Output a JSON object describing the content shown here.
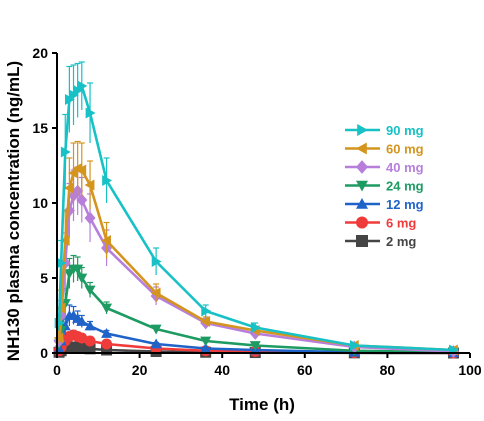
{
  "chart_data": {
    "type": "line",
    "xlabel": "Time (h)",
    "ylabel": "NH130 plasma concentration (ng/mL)",
    "xlim": [
      0,
      100
    ],
    "ylim": [
      0,
      20
    ],
    "xticks": [
      "0",
      "20",
      "40",
      "60",
      "80",
      "100"
    ],
    "yticks": [
      "0",
      "5",
      "10",
      "15",
      "20"
    ],
    "grid": false,
    "legend_position": "right",
    "series": [
      {
        "name": "90 mg",
        "color": "#17c1c6",
        "marker": "triangle-right",
        "x": [
          0.5,
          1,
          2,
          3,
          4,
          5,
          6,
          8,
          12,
          24,
          36,
          48,
          72,
          96
        ],
        "y": [
          2.0,
          6.0,
          13.4,
          16.9,
          17.2,
          17.5,
          17.8,
          16.0,
          11.5,
          6.1,
          2.8,
          1.7,
          0.5,
          0.2
        ],
        "err": [
          0.5,
          1.5,
          2.5,
          2.2,
          2.0,
          1.8,
          1.6,
          2.0,
          1.5,
          0.9,
          0.4,
          0.3,
          0.1,
          0.1
        ]
      },
      {
        "name": "60 mg",
        "color": "#d4951f",
        "marker": "triangle-left",
        "x": [
          0.5,
          1,
          2,
          3,
          4,
          5,
          6,
          8,
          12,
          24,
          36,
          48,
          72,
          96
        ],
        "y": [
          1.0,
          3.0,
          7.5,
          11.0,
          12.0,
          12.3,
          12.2,
          11.2,
          7.5,
          4.0,
          2.1,
          1.5,
          0.5,
          0.2
        ],
        "err": [
          0.4,
          1.2,
          2.0,
          2.0,
          2.0,
          1.8,
          1.8,
          1.6,
          1.2,
          0.6,
          0.3,
          0.2,
          0.1,
          0.1
        ]
      },
      {
        "name": "40 mg",
        "color": "#b77fdb",
        "marker": "diamond",
        "x": [
          0.5,
          1,
          2,
          3,
          4,
          5,
          6,
          8,
          12,
          24,
          36,
          48,
          72,
          96
        ],
        "y": [
          0.8,
          2.5,
          6.0,
          9.5,
          10.5,
          10.8,
          10.2,
          9.0,
          7.0,
          3.8,
          2.0,
          1.3,
          0.4,
          0.1
        ],
        "err": [
          0.3,
          1.0,
          2.0,
          1.8,
          1.7,
          1.6,
          1.5,
          1.6,
          1.2,
          0.6,
          0.3,
          0.2,
          0.1,
          0.1
        ]
      },
      {
        "name": "24 mg",
        "color": "#1e9b62",
        "marker": "triangle-down",
        "x": [
          0.5,
          1,
          2,
          3,
          4,
          5,
          6,
          8,
          12,
          24,
          36,
          48,
          72,
          96
        ],
        "y": [
          0.6,
          1.5,
          3.3,
          5.3,
          5.6,
          5.6,
          5.0,
          4.2,
          3.0,
          1.6,
          0.8,
          0.5,
          0.15,
          0.05
        ],
        "err": [
          0.2,
          0.6,
          1.0,
          1.0,
          0.9,
          0.8,
          0.7,
          0.5,
          0.4,
          0.2,
          0.1,
          0.1,
          0.05,
          0.03
        ]
      },
      {
        "name": "12 mg",
        "color": "#1f63c9",
        "marker": "triangle-up",
        "x": [
          0.5,
          1,
          2,
          3,
          4,
          5,
          6,
          8,
          12,
          24,
          36,
          48,
          72,
          96
        ],
        "y": [
          0.3,
          0.8,
          1.8,
          2.5,
          2.5,
          2.3,
          2.1,
          1.8,
          1.3,
          0.6,
          0.3,
          0.2,
          0.05,
          0.02
        ],
        "err": [
          0.1,
          0.4,
          0.6,
          0.7,
          0.6,
          0.5,
          0.4,
          0.3,
          0.2,
          0.1,
          0.05,
          0.05,
          0.02,
          0.01
        ]
      },
      {
        "name": "6 mg",
        "color": "#f03b3b",
        "marker": "circle",
        "x": [
          0.5,
          1,
          2,
          3,
          4,
          5,
          6,
          8,
          12,
          24,
          36,
          48,
          72,
          96
        ],
        "y": [
          0.15,
          0.4,
          0.8,
          1.1,
          1.2,
          1.1,
          1.0,
          0.8,
          0.6,
          0.3,
          0.15,
          0.1,
          0.03,
          0.01
        ],
        "err": [
          0.05,
          0.15,
          0.3,
          0.3,
          0.3,
          0.25,
          0.2,
          0.15,
          0.1,
          0.05,
          0.03,
          0.02,
          0.01,
          0.01
        ]
      },
      {
        "name": "2 mg",
        "color": "#454545",
        "marker": "square",
        "x": [
          0.5,
          1,
          2,
          3,
          4,
          5,
          6,
          8,
          12,
          24,
          36,
          48,
          72,
          96
        ],
        "y": [
          0.05,
          0.15,
          0.3,
          0.4,
          0.4,
          0.38,
          0.33,
          0.28,
          0.2,
          0.1,
          0.05,
          0.03,
          0.01,
          0.0
        ],
        "err": [
          0.02,
          0.05,
          0.1,
          0.1,
          0.1,
          0.08,
          0.07,
          0.05,
          0.04,
          0.02,
          0.01,
          0.01,
          0.0,
          0.0
        ]
      }
    ]
  }
}
